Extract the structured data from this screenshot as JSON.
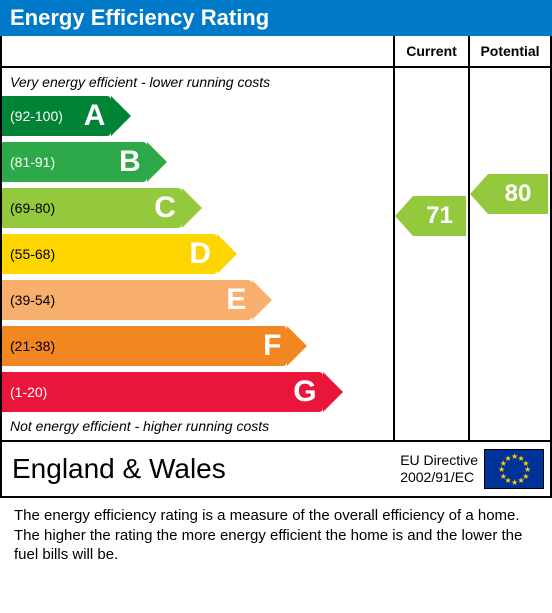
{
  "title": "Energy Efficiency Rating",
  "columns": {
    "current": "Current",
    "potential": "Potential"
  },
  "caption_top": "Very energy efficient - lower running costs",
  "caption_bottom": "Not energy efficient - higher running costs",
  "bands": [
    {
      "letter": "A",
      "range": "(92-100)",
      "color": "#008334",
      "width_pct": 28,
      "letter_color": "#ffffff",
      "range_color": "#ffffff"
    },
    {
      "letter": "B",
      "range": "(81-91)",
      "color": "#2ea949",
      "width_pct": 37,
      "letter_color": "#ffffff",
      "range_color": "#ffffff"
    },
    {
      "letter": "C",
      "range": "(69-80)",
      "color": "#94c93d",
      "width_pct": 46,
      "letter_color": "#ffffff",
      "range_color": "#000000"
    },
    {
      "letter": "D",
      "range": "(55-68)",
      "color": "#ffd500",
      "width_pct": 55,
      "letter_color": "#ffffff",
      "range_color": "#000000"
    },
    {
      "letter": "E",
      "range": "(39-54)",
      "color": "#f8af6e",
      "width_pct": 64,
      "letter_color": "#ffffff",
      "range_color": "#000000"
    },
    {
      "letter": "F",
      "range": "(21-38)",
      "color": "#f28620",
      "width_pct": 73,
      "letter_color": "#ffffff",
      "range_color": "#000000"
    },
    {
      "letter": "G",
      "range": "(1-20)",
      "color": "#e9153b",
      "width_pct": 82,
      "letter_color": "#ffffff",
      "range_color": "#ffffff"
    }
  ],
  "current": {
    "value": "71",
    "band_index": 2,
    "color": "#94c93d"
  },
  "potential": {
    "value": "80",
    "band_index": 2,
    "color": "#94c93d"
  },
  "footer": {
    "region": "England & Wales",
    "directive_line1": "EU Directive",
    "directive_line2": "2002/91/EC"
  },
  "description": "The energy efficiency rating is a measure of the overall efficiency of a home.  The higher the rating the more energy efficient the home is and the lower the fuel bills will be."
}
